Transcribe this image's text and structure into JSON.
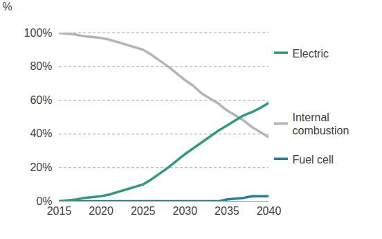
{
  "chart_data": {
    "type": "line",
    "ylabel": "%",
    "x": [
      2015,
      2016,
      2017,
      2018,
      2019,
      2020,
      2021,
      2022,
      2023,
      2024,
      2025,
      2026,
      2027,
      2028,
      2029,
      2030,
      2031,
      2032,
      2033,
      2034,
      2035,
      2036,
      2037,
      2038,
      2039,
      2040
    ],
    "xlim": [
      2015,
      2040
    ],
    "xticks": [
      2015,
      2020,
      2025,
      2030,
      2035,
      2040
    ],
    "ylim": [
      0,
      100
    ],
    "yticks": [
      {
        "value": 0,
        "label": "0%"
      },
      {
        "value": 20,
        "label": "20%"
      },
      {
        "value": 40,
        "label": "40%"
      },
      {
        "value": 60,
        "label": "60%"
      },
      {
        "value": 80,
        "label": "80%"
      },
      {
        "value": 100,
        "label": "100%"
      }
    ],
    "grid": true,
    "legend": "right",
    "series": [
      {
        "name": "Electric",
        "color": "#2f9a7c",
        "values": [
          0,
          0.5,
          1,
          2,
          2.5,
          3,
          4,
          5.5,
          7,
          8.5,
          10,
          13,
          16.5,
          20,
          24,
          28,
          31.5,
          35,
          38.5,
          42,
          45,
          48,
          51,
          53,
          55.5,
          58.5
        ]
      },
      {
        "name": "Internal combustion",
        "color": "#b4b4b4",
        "values": [
          100,
          99.5,
          99,
          98,
          97.5,
          97,
          96,
          94.5,
          93,
          91.5,
          90,
          87,
          83.5,
          80,
          76,
          72,
          68.5,
          64,
          61,
          58,
          54,
          51,
          48,
          44,
          41,
          38
        ]
      },
      {
        "name": "Fuel cell",
        "color": "#1f7ea1",
        "values": [
          0,
          0,
          0,
          0,
          0,
          0,
          0,
          0,
          0,
          0,
          0,
          0,
          0,
          0,
          0,
          0,
          0,
          0,
          0,
          0,
          1,
          1.5,
          2,
          3,
          3,
          3
        ]
      }
    ]
  }
}
